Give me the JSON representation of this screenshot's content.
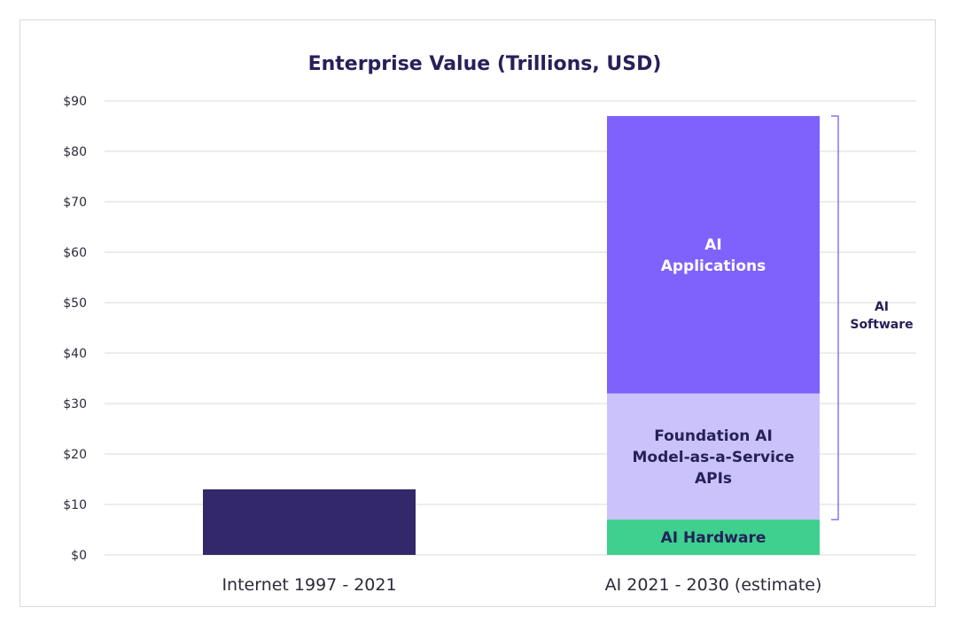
{
  "chart_data": {
    "type": "bar",
    "stacked": true,
    "title": "Enterprise Value (Trillions, USD)",
    "xlabel": "",
    "ylabel": "",
    "ylim": [
      0,
      90
    ],
    "yticks": [
      0,
      10,
      20,
      30,
      40,
      50,
      60,
      70,
      80,
      90
    ],
    "ytick_labels": [
      "$0",
      "$10",
      "$20",
      "$30",
      "$40",
      "$50",
      "$60",
      "$70",
      "$80",
      "$90"
    ],
    "grid": true,
    "categories": [
      "Internet 1997 - 2021",
      "AI 2021 - 2030 (estimate)"
    ],
    "bars": [
      {
        "category": "Internet 1997 - 2021",
        "segments": [
          {
            "label": "",
            "value": 13,
            "color": "#32286a",
            "text_color": "#ffffff",
            "label_lines": []
          }
        ]
      },
      {
        "category": "AI 2021 - 2030 (estimate)",
        "segments": [
          {
            "label": "AI Hardware",
            "value": 7,
            "color": "#3dd08e",
            "text_color": "#26215a",
            "label_lines": [
              "AI Hardware"
            ]
          },
          {
            "label": "Foundation AI Model-as-a-Service APIs",
            "value": 25,
            "color": "#cbc2fb",
            "text_color": "#26215a",
            "label_lines": [
              "Foundation AI",
              "Model-as-a-Service",
              "APIs"
            ]
          },
          {
            "label": "AI Applications",
            "value": 55,
            "color": "#7f61fc",
            "text_color": "#ffffff",
            "label_lines": [
              "AI",
              "Applications"
            ]
          }
        ]
      }
    ],
    "annotation": {
      "label_lines": [
        "AI",
        "Software"
      ],
      "from": 7,
      "to": 87,
      "color": "#8b73f2"
    }
  }
}
